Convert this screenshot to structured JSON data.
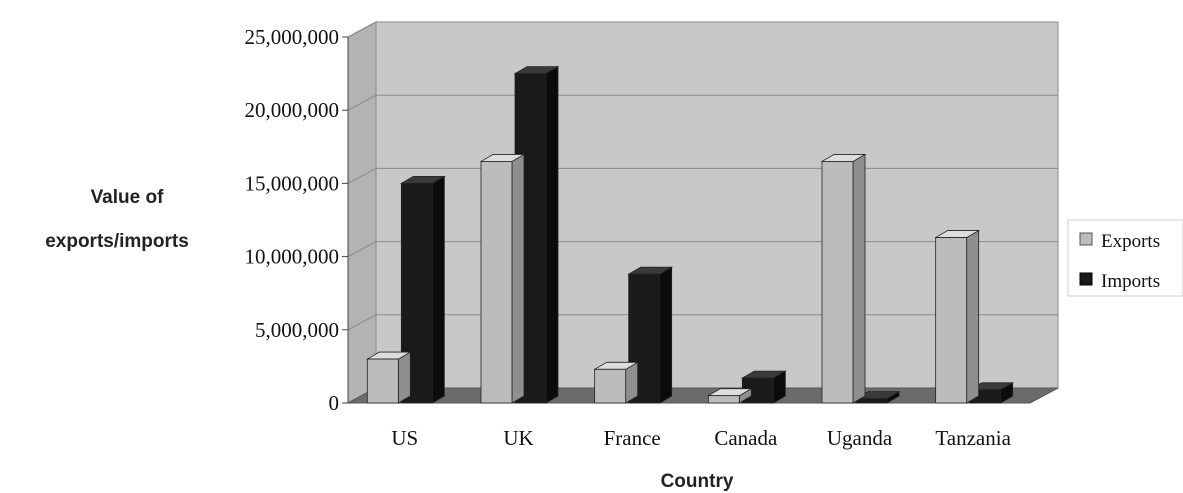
{
  "chart_data": {
    "type": "bar",
    "categories": [
      "US",
      "UK",
      "France",
      "Canada",
      "Uganda",
      "Tanzania"
    ],
    "series": [
      {
        "name": "Exports",
        "values": [
          3000000,
          16500000,
          2300000,
          500000,
          16500000,
          11300000
        ]
      },
      {
        "name": "Imports",
        "values": [
          15000000,
          22500000,
          8800000,
          1700000,
          300000,
          900000
        ]
      }
    ],
    "ylim": [
      0,
      25000000
    ],
    "yticks": [
      0,
      5000000,
      10000000,
      15000000,
      20000000,
      25000000
    ],
    "ytick_labels": [
      "0",
      "5,000,000",
      "10,000,000",
      "15,000,000",
      "20,000,000",
      "25,000,000"
    ],
    "ylabel_line1": "Value of",
    "ylabel_line2": "exports/imports",
    "xlabel": "Country",
    "legend_position": "right",
    "grid": true,
    "style": "3d-column",
    "colors": {
      "Exports": "#bcbcbc",
      "Imports": "#1a1a1a",
      "back_wall": "#c8c8c8",
      "floor": "#6b6b6b"
    }
  }
}
